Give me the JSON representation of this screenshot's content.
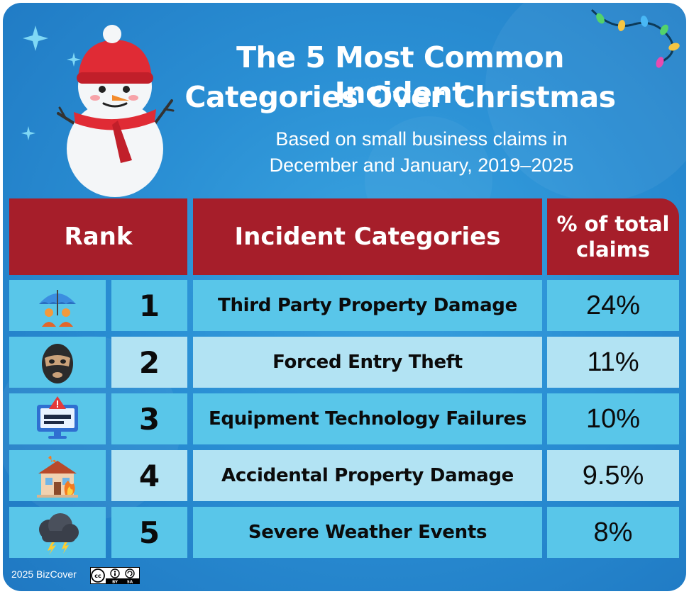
{
  "title_line1": "The 5 Most Common Incident",
  "title_line2": "Categories Over Christmas",
  "subtitle_line1": "Based on small business claims in",
  "subtitle_line2": "December and January, 2019–2025",
  "headers": {
    "rank": "Rank",
    "category": "Incident Categories",
    "pct_line1": "% of total",
    "pct_line2": "claims"
  },
  "rows": [
    {
      "rank": "1",
      "category": "Third Party Property Damage",
      "pct": "24%",
      "icon": "umbrella-people-icon"
    },
    {
      "rank": "2",
      "category": "Forced Entry Theft",
      "pct": "11%",
      "icon": "balaclava-icon"
    },
    {
      "rank": "3",
      "category": "Equipment Technology Failures",
      "pct": "10%",
      "icon": "monitor-warning-icon"
    },
    {
      "rank": "4",
      "category": "Accidental Property Damage",
      "pct": "9.5%",
      "icon": "house-fire-icon"
    },
    {
      "rank": "5",
      "category": "Severe Weather Events",
      "pct": "8%",
      "icon": "storm-cloud-icon"
    }
  ],
  "footer": {
    "copyright": "2025 BizCover",
    "license_by": "BY",
    "license_sa": "SA"
  },
  "colors": {
    "background": "#2a8fd4",
    "header_red": "#a61e2a",
    "row_dark": "#59c6e9",
    "row_light": "#b2e3f3"
  }
}
